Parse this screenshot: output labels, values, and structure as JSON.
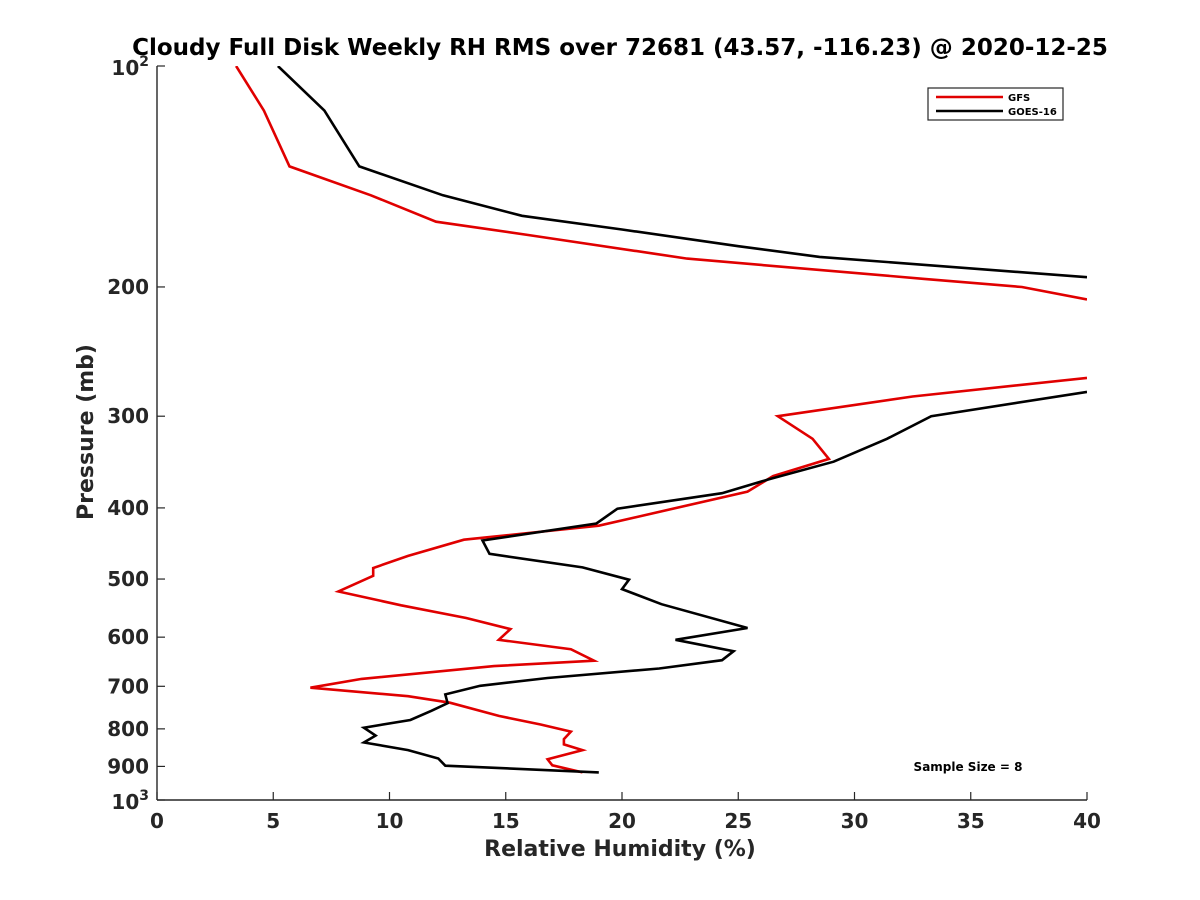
{
  "chart_data": {
    "type": "line",
    "title": "Cloudy Full Disk Weekly RH RMS over 72681 (43.57, -116.23) @ 2020-12-25",
    "xlabel": "Relative Humidity (%)",
    "ylabel": "Pressure (mb)",
    "xlim": [
      0,
      40
    ],
    "ylim": [
      100,
      1000
    ],
    "yscale": "log",
    "y_reversed": true,
    "x_ticks": [
      {
        "value": 0,
        "label": "0"
      },
      {
        "value": 5,
        "label": "5"
      },
      {
        "value": 10,
        "label": "10"
      },
      {
        "value": 15,
        "label": "15"
      },
      {
        "value": 20,
        "label": "20"
      },
      {
        "value": 25,
        "label": "25"
      },
      {
        "value": 30,
        "label": "30"
      },
      {
        "value": 35,
        "label": "35"
      },
      {
        "value": 40,
        "label": "40"
      }
    ],
    "y_ticks": [
      {
        "value": 100,
        "base": "10",
        "exp": "2"
      },
      {
        "value": 200,
        "label": "200"
      },
      {
        "value": 300,
        "label": "300"
      },
      {
        "value": 400,
        "label": "400"
      },
      {
        "value": 500,
        "label": "500"
      },
      {
        "value": 600,
        "label": "600"
      },
      {
        "value": 700,
        "label": "700"
      },
      {
        "value": 800,
        "label": "800"
      },
      {
        "value": 900,
        "label": "900"
      },
      {
        "value": 1000,
        "base": "10",
        "exp": "3"
      }
    ],
    "grid": false,
    "legend_position": "top-right",
    "annotation": "Sample Size = 8",
    "series": [
      {
        "name": "GFS",
        "color": "#e00000",
        "points": [
          {
            "x": 3.4,
            "y": 100
          },
          {
            "x": 4.6,
            "y": 115
          },
          {
            "x": 5.7,
            "y": 137
          },
          {
            "x": 9.2,
            "y": 150
          },
          {
            "x": 12.0,
            "y": 163
          },
          {
            "x": 16.0,
            "y": 170
          },
          {
            "x": 22.8,
            "y": 183
          },
          {
            "x": 33.0,
            "y": 195
          },
          {
            "x": 37.2,
            "y": 200
          },
          {
            "x": 40.0,
            "y": 208
          },
          {
            "x": null,
            "y": 240
          },
          {
            "x": 40.0,
            "y": 266
          },
          {
            "x": 32.5,
            "y": 282
          },
          {
            "x": 26.7,
            "y": 300
          },
          {
            "x": 28.2,
            "y": 322
          },
          {
            "x": 28.9,
            "y": 343
          },
          {
            "x": 26.5,
            "y": 362
          },
          {
            "x": 25.4,
            "y": 380
          },
          {
            "x": 19.0,
            "y": 423
          },
          {
            "x": 13.2,
            "y": 442
          },
          {
            "x": 10.8,
            "y": 465
          },
          {
            "x": 9.3,
            "y": 483
          },
          {
            "x": 9.3,
            "y": 495
          },
          {
            "x": 7.8,
            "y": 520
          },
          {
            "x": 10.5,
            "y": 543
          },
          {
            "x": 13.3,
            "y": 565
          },
          {
            "x": 15.2,
            "y": 585
          },
          {
            "x": 14.7,
            "y": 605
          },
          {
            "x": 17.8,
            "y": 623
          },
          {
            "x": 18.8,
            "y": 646
          },
          {
            "x": 14.5,
            "y": 657
          },
          {
            "x": 8.8,
            "y": 684
          },
          {
            "x": 6.6,
            "y": 703
          },
          {
            "x": 10.8,
            "y": 722
          },
          {
            "x": 12.6,
            "y": 737
          },
          {
            "x": 14.7,
            "y": 768
          },
          {
            "x": 16.5,
            "y": 789
          },
          {
            "x": 17.8,
            "y": 807
          },
          {
            "x": 17.5,
            "y": 826
          },
          {
            "x": 17.5,
            "y": 840
          },
          {
            "x": 18.3,
            "y": 855
          },
          {
            "x": 16.8,
            "y": 880
          },
          {
            "x": 17.0,
            "y": 897
          },
          {
            "x": 18.3,
            "y": 917
          }
        ]
      },
      {
        "name": "GOES-16",
        "color": "#000000",
        "points": [
          {
            "x": 5.2,
            "y": 100
          },
          {
            "x": 7.2,
            "y": 115
          },
          {
            "x": 8.7,
            "y": 137
          },
          {
            "x": 12.3,
            "y": 150
          },
          {
            "x": 15.7,
            "y": 160
          },
          {
            "x": 20.0,
            "y": 167
          },
          {
            "x": 25.0,
            "y": 176
          },
          {
            "x": 28.5,
            "y": 182
          },
          {
            "x": 40.0,
            "y": 194
          },
          {
            "x": null,
            "y": 240
          },
          {
            "x": 40.0,
            "y": 278
          },
          {
            "x": 33.3,
            "y": 300
          },
          {
            "x": 31.4,
            "y": 322
          },
          {
            "x": 29.1,
            "y": 346
          },
          {
            "x": 26.4,
            "y": 365
          },
          {
            "x": 24.3,
            "y": 382
          },
          {
            "x": 19.8,
            "y": 401
          },
          {
            "x": 18.9,
            "y": 420
          },
          {
            "x": 14.0,
            "y": 443
          },
          {
            "x": 14.3,
            "y": 462
          },
          {
            "x": 18.3,
            "y": 482
          },
          {
            "x": 20.3,
            "y": 501
          },
          {
            "x": 20.0,
            "y": 516
          },
          {
            "x": 21.7,
            "y": 541
          },
          {
            "x": 25.4,
            "y": 583
          },
          {
            "x": 22.3,
            "y": 605
          },
          {
            "x": 24.8,
            "y": 627
          },
          {
            "x": 24.3,
            "y": 645
          },
          {
            "x": 21.6,
            "y": 662
          },
          {
            "x": 16.8,
            "y": 682
          },
          {
            "x": 13.9,
            "y": 699
          },
          {
            "x": 12.4,
            "y": 718
          },
          {
            "x": 12.5,
            "y": 738
          },
          {
            "x": 11.8,
            "y": 756
          },
          {
            "x": 10.9,
            "y": 778
          },
          {
            "x": 8.9,
            "y": 797
          },
          {
            "x": 9.4,
            "y": 817
          },
          {
            "x": 8.9,
            "y": 835
          },
          {
            "x": 10.8,
            "y": 855
          },
          {
            "x": 12.1,
            "y": 878
          },
          {
            "x": 12.4,
            "y": 898
          },
          {
            "x": 19.0,
            "y": 917
          }
        ]
      }
    ]
  }
}
